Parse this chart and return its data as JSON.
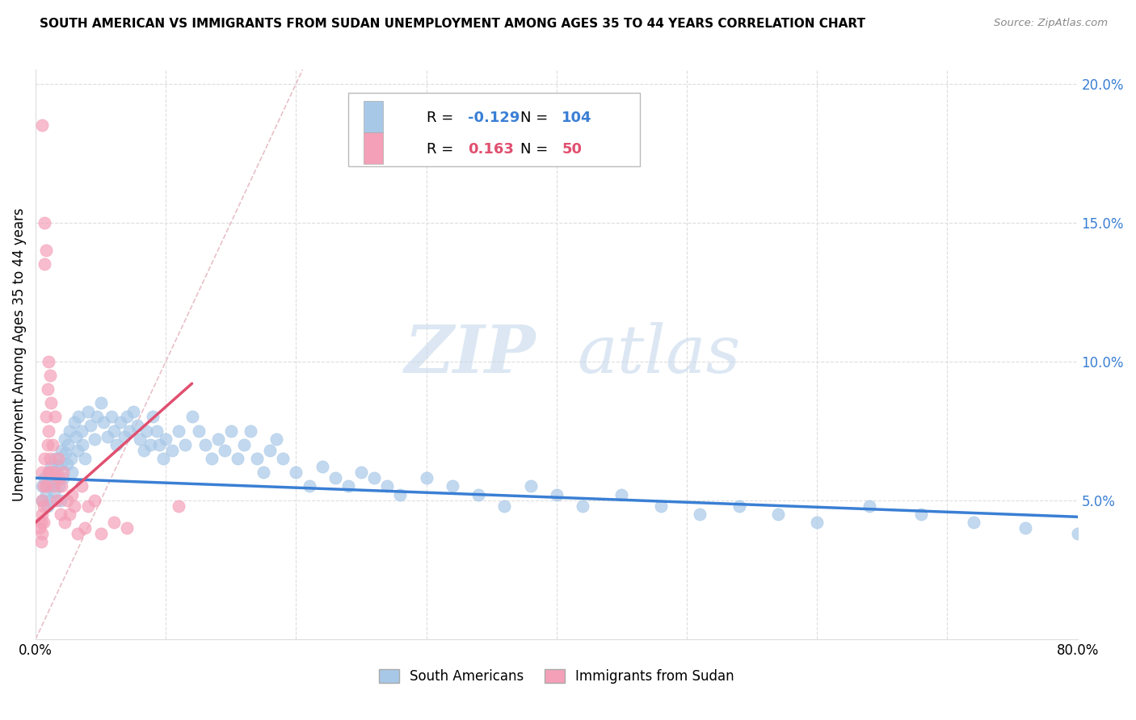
{
  "title": "SOUTH AMERICAN VS IMMIGRANTS FROM SUDAN UNEMPLOYMENT AMONG AGES 35 TO 44 YEARS CORRELATION CHART",
  "source": "Source: ZipAtlas.com",
  "ylabel": "Unemployment Among Ages 35 to 44 years",
  "xlim": [
    0.0,
    0.8
  ],
  "ylim": [
    0.0,
    0.205
  ],
  "blue_color": "#a8c8e8",
  "pink_color": "#f4a0b8",
  "blue_line_color": "#3a7fd4",
  "pink_line_color": "#e05070",
  "diagonal_color": "#e8c0c8",
  "legend_blue_R": "-0.129",
  "legend_blue_N": "104",
  "legend_pink_R": "0.163",
  "legend_pink_N": "50",
  "watermark_zip": "ZIP",
  "watermark_atlas": "atlas",
  "legend_label_blue": "South Americans",
  "legend_label_pink": "Immigrants from Sudan",
  "blue_scatter_x": [
    0.005,
    0.005,
    0.007,
    0.008,
    0.009,
    0.01,
    0.01,
    0.011,
    0.012,
    0.013,
    0.014,
    0.015,
    0.015,
    0.016,
    0.017,
    0.018,
    0.019,
    0.02,
    0.02,
    0.021,
    0.022,
    0.023,
    0.024,
    0.025,
    0.026,
    0.027,
    0.028,
    0.03,
    0.031,
    0.032,
    0.033,
    0.035,
    0.036,
    0.038,
    0.04,
    0.042,
    0.045,
    0.047,
    0.05,
    0.052,
    0.055,
    0.058,
    0.06,
    0.062,
    0.065,
    0.068,
    0.07,
    0.072,
    0.075,
    0.078,
    0.08,
    0.083,
    0.085,
    0.088,
    0.09,
    0.093,
    0.095,
    0.098,
    0.1,
    0.105,
    0.11,
    0.115,
    0.12,
    0.125,
    0.13,
    0.135,
    0.14,
    0.145,
    0.15,
    0.155,
    0.16,
    0.165,
    0.17,
    0.175,
    0.18,
    0.185,
    0.19,
    0.2,
    0.21,
    0.22,
    0.23,
    0.24,
    0.25,
    0.26,
    0.27,
    0.28,
    0.3,
    0.32,
    0.34,
    0.36,
    0.38,
    0.4,
    0.42,
    0.45,
    0.48,
    0.51,
    0.54,
    0.57,
    0.6,
    0.64,
    0.68,
    0.72,
    0.76,
    0.8
  ],
  "blue_scatter_y": [
    0.055,
    0.05,
    0.058,
    0.052,
    0.048,
    0.06,
    0.055,
    0.05,
    0.062,
    0.058,
    0.053,
    0.065,
    0.06,
    0.057,
    0.062,
    0.055,
    0.05,
    0.068,
    0.063,
    0.058,
    0.072,
    0.067,
    0.063,
    0.07,
    0.075,
    0.065,
    0.06,
    0.078,
    0.073,
    0.068,
    0.08,
    0.075,
    0.07,
    0.065,
    0.082,
    0.077,
    0.072,
    0.08,
    0.085,
    0.078,
    0.073,
    0.08,
    0.075,
    0.07,
    0.078,
    0.073,
    0.08,
    0.075,
    0.082,
    0.077,
    0.072,
    0.068,
    0.075,
    0.07,
    0.08,
    0.075,
    0.07,
    0.065,
    0.072,
    0.068,
    0.075,
    0.07,
    0.08,
    0.075,
    0.07,
    0.065,
    0.072,
    0.068,
    0.075,
    0.065,
    0.07,
    0.075,
    0.065,
    0.06,
    0.068,
    0.072,
    0.065,
    0.06,
    0.055,
    0.062,
    0.058,
    0.055,
    0.06,
    0.058,
    0.055,
    0.052,
    0.058,
    0.055,
    0.052,
    0.048,
    0.055,
    0.052,
    0.048,
    0.052,
    0.048,
    0.045,
    0.048,
    0.045,
    0.042,
    0.048,
    0.045,
    0.042,
    0.04,
    0.038
  ],
  "pink_scatter_x": [
    0.003,
    0.004,
    0.004,
    0.005,
    0.005,
    0.005,
    0.005,
    0.005,
    0.006,
    0.006,
    0.006,
    0.007,
    0.007,
    0.007,
    0.008,
    0.008,
    0.008,
    0.009,
    0.009,
    0.01,
    0.01,
    0.01,
    0.011,
    0.011,
    0.012,
    0.012,
    0.013,
    0.014,
    0.015,
    0.015,
    0.016,
    0.017,
    0.018,
    0.019,
    0.02,
    0.021,
    0.022,
    0.024,
    0.026,
    0.028,
    0.03,
    0.032,
    0.035,
    0.038,
    0.04,
    0.045,
    0.05,
    0.06,
    0.07,
    0.11
  ],
  "pink_scatter_y": [
    0.04,
    0.035,
    0.042,
    0.185,
    0.06,
    0.05,
    0.045,
    0.038,
    0.055,
    0.048,
    0.042,
    0.15,
    0.135,
    0.065,
    0.14,
    0.08,
    0.055,
    0.09,
    0.07,
    0.1,
    0.075,
    0.06,
    0.095,
    0.065,
    0.085,
    0.06,
    0.07,
    0.055,
    0.08,
    0.06,
    0.05,
    0.065,
    0.058,
    0.045,
    0.055,
    0.06,
    0.042,
    0.05,
    0.045,
    0.052,
    0.048,
    0.038,
    0.055,
    0.04,
    0.048,
    0.05,
    0.038,
    0.042,
    0.04,
    0.048
  ],
  "blue_trend_x": [
    0.0,
    0.8
  ],
  "blue_trend_y": [
    0.058,
    0.044
  ],
  "pink_trend_x": [
    0.0,
    0.12
  ],
  "pink_trend_y": [
    0.042,
    0.092
  ]
}
